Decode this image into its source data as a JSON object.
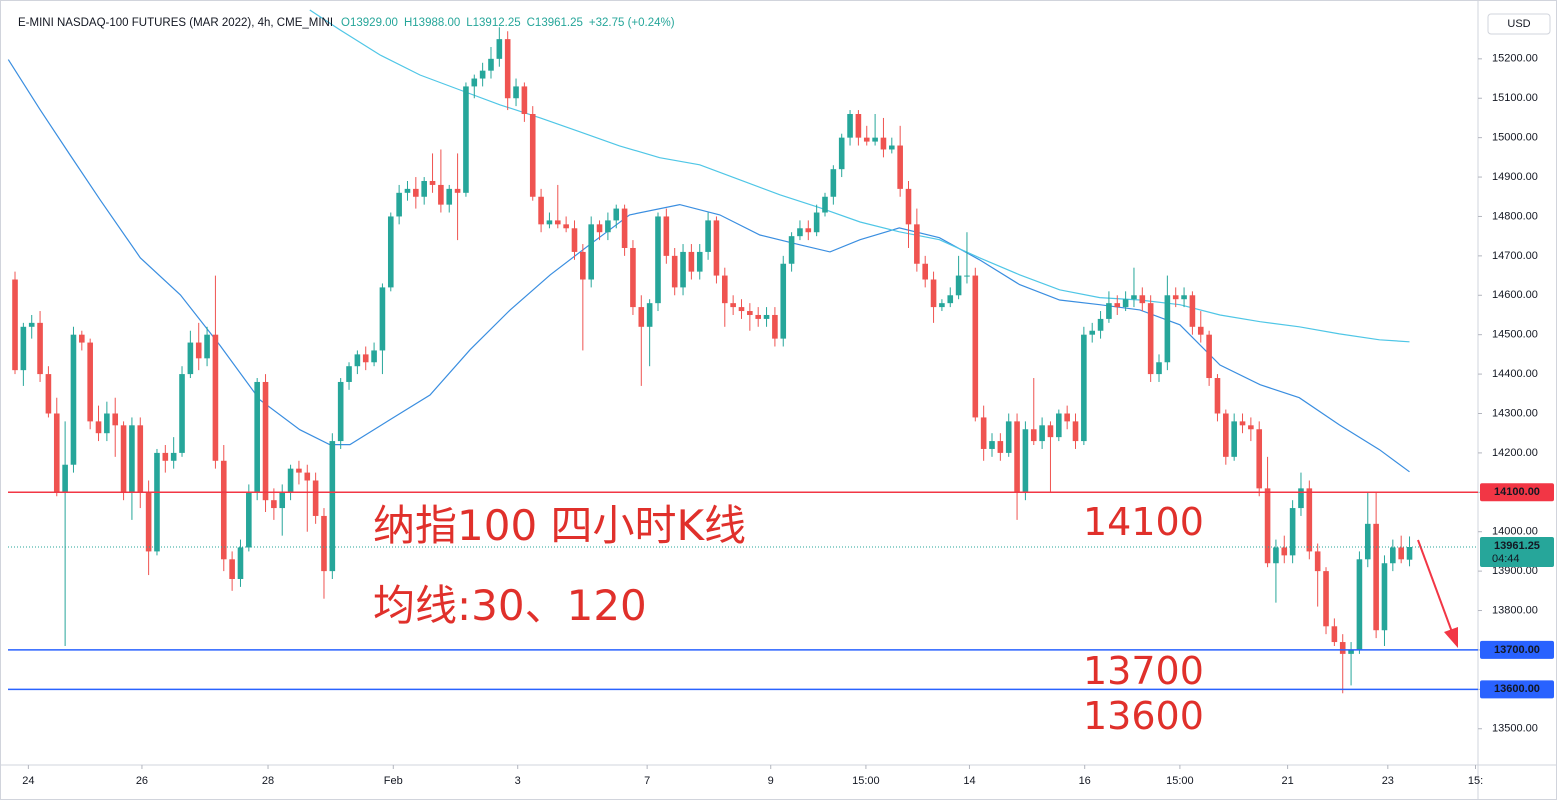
{
  "chart_data": {
    "type": "candlestick",
    "title": "E-MINI NASDAQ-100 FUTURES (MAR 2022), 4h, CME_MINI",
    "header_values": [
      "O13929.00",
      "H13988.00",
      "L13912.25",
      "C13961.25",
      "+32.75 (+0.24%)"
    ],
    "currency": "USD",
    "up_color": "#26a69a",
    "down_color": "#ef5350",
    "ylim": [
      13408,
      15329
    ],
    "yticks": [
      {
        "value": 13500,
        "label": "13500.00"
      },
      {
        "value": 13600,
        "label": "13600.00"
      },
      {
        "value": 13700,
        "label": "13700.00"
      },
      {
        "value": 13800,
        "label": "13800.00"
      },
      {
        "value": 13900,
        "label": "13900.00"
      },
      {
        "value": 14000,
        "label": "14000.00"
      },
      {
        "value": 14100,
        "label": "14100.00"
      },
      {
        "value": 14200,
        "label": "14200.00"
      },
      {
        "value": 14300,
        "label": "14300.00"
      },
      {
        "value": 14400,
        "label": "14400.00"
      },
      {
        "value": 14500,
        "label": "14500.00"
      },
      {
        "value": 14600,
        "label": "14600.00"
      },
      {
        "value": 14700,
        "label": "14700.00"
      },
      {
        "value": 14800,
        "label": "14800.00"
      },
      {
        "value": 14900,
        "label": "14900.00"
      },
      {
        "value": 15000,
        "label": "15000.00"
      },
      {
        "value": 15100,
        "label": "15100.00"
      },
      {
        "value": 15200,
        "label": "15200.00"
      }
    ],
    "xlim": [
      -0.84,
      175.2
    ],
    "xticks": [
      {
        "value": 1.6,
        "label": "24"
      },
      {
        "value": 15.2,
        "label": "26"
      },
      {
        "value": 30.3,
        "label": "28"
      },
      {
        "value": 45.3,
        "label": "Feb"
      },
      {
        "value": 60.2,
        "label": "3"
      },
      {
        "value": 75.7,
        "label": "7"
      },
      {
        "value": 90.5,
        "label": "9"
      },
      {
        "value": 101.9,
        "label": "15:00"
      },
      {
        "value": 114.3,
        "label": "14"
      },
      {
        "value": 128.1,
        "label": "16"
      },
      {
        "value": 139.5,
        "label": "15:00"
      },
      {
        "value": 152.4,
        "label": "21"
      },
      {
        "value": 164.4,
        "label": "23"
      },
      {
        "value": 174.9,
        "label": "15:"
      }
    ],
    "ohlc": [
      [
        14640,
        14660,
        14400,
        14410
      ],
      [
        14410,
        14530,
        14370,
        14520
      ],
      [
        14520,
        14550,
        14490,
        14530
      ],
      [
        14530,
        14560,
        14380,
        14400
      ],
      [
        14400,
        14420,
        14290,
        14300
      ],
      [
        14300,
        14340,
        14090,
        14100
      ],
      [
        14100,
        14280,
        13710,
        14170
      ],
      [
        14170,
        14520,
        14150,
        14500
      ],
      [
        14500,
        14510,
        14460,
        14480
      ],
      [
        14480,
        14490,
        14260,
        14280
      ],
      [
        14280,
        14320,
        14230,
        14250
      ],
      [
        14250,
        14330,
        14230,
        14300
      ],
      [
        14300,
        14340,
        14190,
        14270
      ],
      [
        14270,
        14280,
        14080,
        14100
      ],
      [
        14100,
        14290,
        14030,
        14270
      ],
      [
        14270,
        14290,
        14060,
        14100
      ],
      [
        14100,
        14130,
        13890,
        13950
      ],
      [
        13950,
        14210,
        13940,
        14200
      ],
      [
        14200,
        14220,
        14150,
        14180
      ],
      [
        14180,
        14240,
        14160,
        14200
      ],
      [
        14200,
        14420,
        14190,
        14400
      ],
      [
        14400,
        14510,
        14390,
        14480
      ],
      [
        14480,
        14530,
        14410,
        14440
      ],
      [
        14440,
        14520,
        14420,
        14500
      ],
      [
        14500,
        14650,
        14160,
        14180
      ],
      [
        14180,
        14220,
        13900,
        13930
      ],
      [
        13930,
        13950,
        13850,
        13880
      ],
      [
        13880,
        13980,
        13860,
        13960
      ],
      [
        13960,
        14120,
        13950,
        14100
      ],
      [
        14100,
        14390,
        14080,
        14380
      ],
      [
        14380,
        14400,
        14050,
        14080
      ],
      [
        14080,
        14110,
        14030,
        14060
      ],
      [
        14060,
        14120,
        13990,
        14100
      ],
      [
        14100,
        14170,
        14080,
        14160
      ],
      [
        14160,
        14180,
        14120,
        14150
      ],
      [
        14150,
        14170,
        14000,
        14130
      ],
      [
        14130,
        14150,
        14020,
        14040
      ],
      [
        14040,
        14060,
        13830,
        13900
      ],
      [
        13900,
        14250,
        13880,
        14230
      ],
      [
        14230,
        14390,
        14210,
        14380
      ],
      [
        14380,
        14430,
        14360,
        14420
      ],
      [
        14420,
        14460,
        14400,
        14450
      ],
      [
        14450,
        14470,
        14410,
        14430
      ],
      [
        14430,
        14480,
        14420,
        14460
      ],
      [
        14460,
        14630,
        14400,
        14620
      ],
      [
        14620,
        14810,
        14610,
        14800
      ],
      [
        14800,
        14880,
        14780,
        14860
      ],
      [
        14860,
        14890,
        14840,
        14870
      ],
      [
        14870,
        14900,
        14820,
        14850
      ],
      [
        14850,
        14900,
        14830,
        14890
      ],
      [
        14890,
        14960,
        14860,
        14880
      ],
      [
        14880,
        14970,
        14810,
        14830
      ],
      [
        14830,
        14880,
        14810,
        14870
      ],
      [
        14870,
        14960,
        14740,
        14860
      ],
      [
        14860,
        15140,
        14850,
        15130
      ],
      [
        15130,
        15160,
        15100,
        15150
      ],
      [
        15150,
        15190,
        15130,
        15170
      ],
      [
        15170,
        15230,
        15150,
        15200
      ],
      [
        15200,
        15280,
        15180,
        15250
      ],
      [
        15250,
        15270,
        15070,
        15100
      ],
      [
        15100,
        15150,
        15080,
        15130
      ],
      [
        15130,
        15140,
        15040,
        15060
      ],
      [
        15060,
        15080,
        14840,
        14850
      ],
      [
        14850,
        14870,
        14760,
        14780
      ],
      [
        14780,
        14810,
        14770,
        14790
      ],
      [
        14790,
        14880,
        14770,
        14780
      ],
      [
        14780,
        14800,
        14760,
        14770
      ],
      [
        14770,
        14790,
        14690,
        14710
      ],
      [
        14710,
        14730,
        14460,
        14640
      ],
      [
        14640,
        14800,
        14620,
        14780
      ],
      [
        14780,
        14790,
        14740,
        14760
      ],
      [
        14760,
        14810,
        14740,
        14790
      ],
      [
        14790,
        14830,
        14770,
        14820
      ],
      [
        14820,
        14830,
        14700,
        14720
      ],
      [
        14720,
        14740,
        14550,
        14570
      ],
      [
        14570,
        14600,
        14370,
        14520
      ],
      [
        14520,
        14590,
        14420,
        14580
      ],
      [
        14580,
        14810,
        14560,
        14800
      ],
      [
        14800,
        14820,
        14680,
        14700
      ],
      [
        14700,
        14720,
        14600,
        14620
      ],
      [
        14620,
        14730,
        14600,
        14710
      ],
      [
        14710,
        14730,
        14640,
        14660
      ],
      [
        14660,
        14730,
        14640,
        14710
      ],
      [
        14710,
        14810,
        14690,
        14790
      ],
      [
        14790,
        14800,
        14630,
        14650
      ],
      [
        14650,
        14670,
        14520,
        14580
      ],
      [
        14580,
        14600,
        14550,
        14570
      ],
      [
        14570,
        14590,
        14540,
        14560
      ],
      [
        14560,
        14580,
        14510,
        14550
      ],
      [
        14550,
        14570,
        14520,
        14540
      ],
      [
        14540,
        14570,
        14520,
        14550
      ],
      [
        14550,
        14570,
        14470,
        14490
      ],
      [
        14490,
        14700,
        14470,
        14680
      ],
      [
        14680,
        14760,
        14660,
        14750
      ],
      [
        14750,
        14790,
        14740,
        14770
      ],
      [
        14770,
        14790,
        14740,
        14760
      ],
      [
        14760,
        14830,
        14750,
        14810
      ],
      [
        14810,
        14860,
        14800,
        14850
      ],
      [
        14850,
        14930,
        14830,
        14920
      ],
      [
        14920,
        15010,
        14900,
        15000
      ],
      [
        15000,
        15070,
        14980,
        15060
      ],
      [
        15060,
        15070,
        14980,
        15000
      ],
      [
        15000,
        15030,
        14980,
        14990
      ],
      [
        14990,
        15060,
        14980,
        15000
      ],
      [
        15000,
        15050,
        14950,
        14970
      ],
      [
        14970,
        15000,
        14960,
        14980
      ],
      [
        14980,
        15030,
        14850,
        14870
      ],
      [
        14870,
        14890,
        14720,
        14780
      ],
      [
        14780,
        14820,
        14660,
        14680
      ],
      [
        14680,
        14700,
        14620,
        14640
      ],
      [
        14640,
        14660,
        14530,
        14570
      ],
      [
        14570,
        14590,
        14560,
        14580
      ],
      [
        14580,
        14620,
        14570,
        14600
      ],
      [
        14600,
        14700,
        14590,
        14650
      ],
      [
        14650,
        14760,
        14630,
        14650
      ],
      [
        14650,
        14670,
        14280,
        14290
      ],
      [
        14290,
        14320,
        14180,
        14210
      ],
      [
        14210,
        14250,
        14190,
        14230
      ],
      [
        14230,
        14250,
        14180,
        14200
      ],
      [
        14200,
        14300,
        14190,
        14280
      ],
      [
        14280,
        14300,
        14030,
        14100
      ],
      [
        14100,
        14280,
        14080,
        14260
      ],
      [
        14260,
        14390,
        14220,
        14230
      ],
      [
        14230,
        14290,
        14210,
        14270
      ],
      [
        14270,
        14280,
        14100,
        14240
      ],
      [
        14240,
        14310,
        14230,
        14300
      ],
      [
        14300,
        14320,
        14260,
        14280
      ],
      [
        14280,
        14300,
        14210,
        14230
      ],
      [
        14230,
        14520,
        14220,
        14500
      ],
      [
        14500,
        14530,
        14480,
        14510
      ],
      [
        14510,
        14560,
        14490,
        14540
      ],
      [
        14540,
        14610,
        14530,
        14580
      ],
      [
        14580,
        14600,
        14550,
        14570
      ],
      [
        14570,
        14610,
        14560,
        14590
      ],
      [
        14590,
        14670,
        14570,
        14600
      ],
      [
        14600,
        14620,
        14560,
        14580
      ],
      [
        14580,
        14600,
        14380,
        14400
      ],
      [
        14400,
        14450,
        14380,
        14430
      ],
      [
        14430,
        14650,
        14410,
        14600
      ],
      [
        14600,
        14620,
        14570,
        14590
      ],
      [
        14590,
        14620,
        14570,
        14600
      ],
      [
        14600,
        14610,
        14500,
        14520
      ],
      [
        14520,
        14560,
        14480,
        14500
      ],
      [
        14500,
        14510,
        14370,
        14390
      ],
      [
        14390,
        14400,
        14280,
        14300
      ],
      [
        14300,
        14310,
        14170,
        14190
      ],
      [
        14190,
        14300,
        14180,
        14280
      ],
      [
        14280,
        14300,
        14250,
        14270
      ],
      [
        14270,
        14290,
        14230,
        14260
      ],
      [
        14260,
        14280,
        14090,
        14110
      ],
      [
        14110,
        14190,
        13910,
        13920
      ],
      [
        13920,
        13980,
        13820,
        13960
      ],
      [
        13960,
        13990,
        13920,
        13940
      ],
      [
        13940,
        14080,
        13920,
        14060
      ],
      [
        14060,
        14150,
        14040,
        14110
      ],
      [
        14110,
        14130,
        13930,
        13950
      ],
      [
        13950,
        13970,
        13810,
        13900
      ],
      [
        13900,
        13910,
        13740,
        13760
      ],
      [
        13760,
        13780,
        13710,
        13720
      ],
      [
        13720,
        13740,
        13590,
        13690
      ],
      [
        13690,
        13720,
        13610,
        13700
      ],
      [
        13700,
        13950,
        13690,
        13930
      ],
      [
        13930,
        14100,
        13910,
        14020
      ],
      [
        14020,
        14100,
        13730,
        13750
      ],
      [
        13750,
        13940,
        13710,
        13920
      ],
      [
        13920,
        13980,
        13900,
        13960
      ],
      [
        13960,
        13990,
        13920,
        13930
      ],
      [
        13929,
        13988,
        13912.25,
        13961.25
      ]
    ],
    "lines": [
      {
        "color": "#3a8ee0",
        "x": [
          -0.8,
          3,
          6.6,
          10.2,
          15,
          19.8,
          24.5,
          29.3,
          34.1,
          37.7,
          40.1,
          44.9,
          49.7,
          54.5,
          59.3,
          64.1,
          68.8,
          73.6,
          79.6,
          84.4,
          89.2,
          94,
          97.6,
          101.2,
          105.9,
          110.7,
          115.5,
          120.3,
          125.1,
          129.9,
          134.7,
          139.5,
          144.3,
          149.1,
          153.8,
          158.6,
          163.4,
          167
        ],
        "values": [
          15198,
          15071,
          14956,
          14842,
          14695,
          14601,
          14474,
          14335,
          14259,
          14221,
          14221,
          14284,
          14347,
          14462,
          14563,
          14652,
          14728,
          14804,
          14830,
          14804,
          14753,
          14728,
          14710,
          14741,
          14771,
          14746,
          14690,
          14627,
          14588,
          14576,
          14563,
          14525,
          14423,
          14373,
          14340,
          14271,
          14208,
          14152
        ]
      },
      {
        "color": "#4fc6e6",
        "x": [
          35.3,
          38.9,
          43.7,
          48.5,
          53.3,
          58.1,
          62.9,
          67.6,
          72.4,
          77.2,
          82,
          86.8,
          91.6,
          96.4,
          101.2,
          105.9,
          110.7,
          115.5,
          120.3,
          125.1,
          129.9,
          134.7,
          139.5,
          144.3,
          149.1,
          153.8,
          158.6,
          163.4,
          167
        ],
        "values": [
          15324,
          15274,
          15210,
          15159,
          15121,
          15083,
          15050,
          15015,
          14979,
          14949,
          14931,
          14893,
          14855,
          14822,
          14786,
          14761,
          14741,
          14695,
          14652,
          14614,
          14594,
          14588,
          14576,
          14550,
          14533,
          14520,
          14502,
          14487,
          14482
        ]
      }
    ],
    "hlines": [
      {
        "value": 14100,
        "label": "14100.00",
        "color": "#f23645"
      },
      {
        "value": 13700,
        "label": "13700.00",
        "color": "#2962ff"
      },
      {
        "value": 13600,
        "label": "13600.00",
        "color": "#2962ff"
      }
    ],
    "last_price": {
      "value": 13961.25,
      "label": "13961.25",
      "countdown": "04:44"
    },
    "annotations": [
      "纳指100 四小时K线",
      "均线:30、120",
      "14100",
      "13700",
      "13600"
    ]
  }
}
